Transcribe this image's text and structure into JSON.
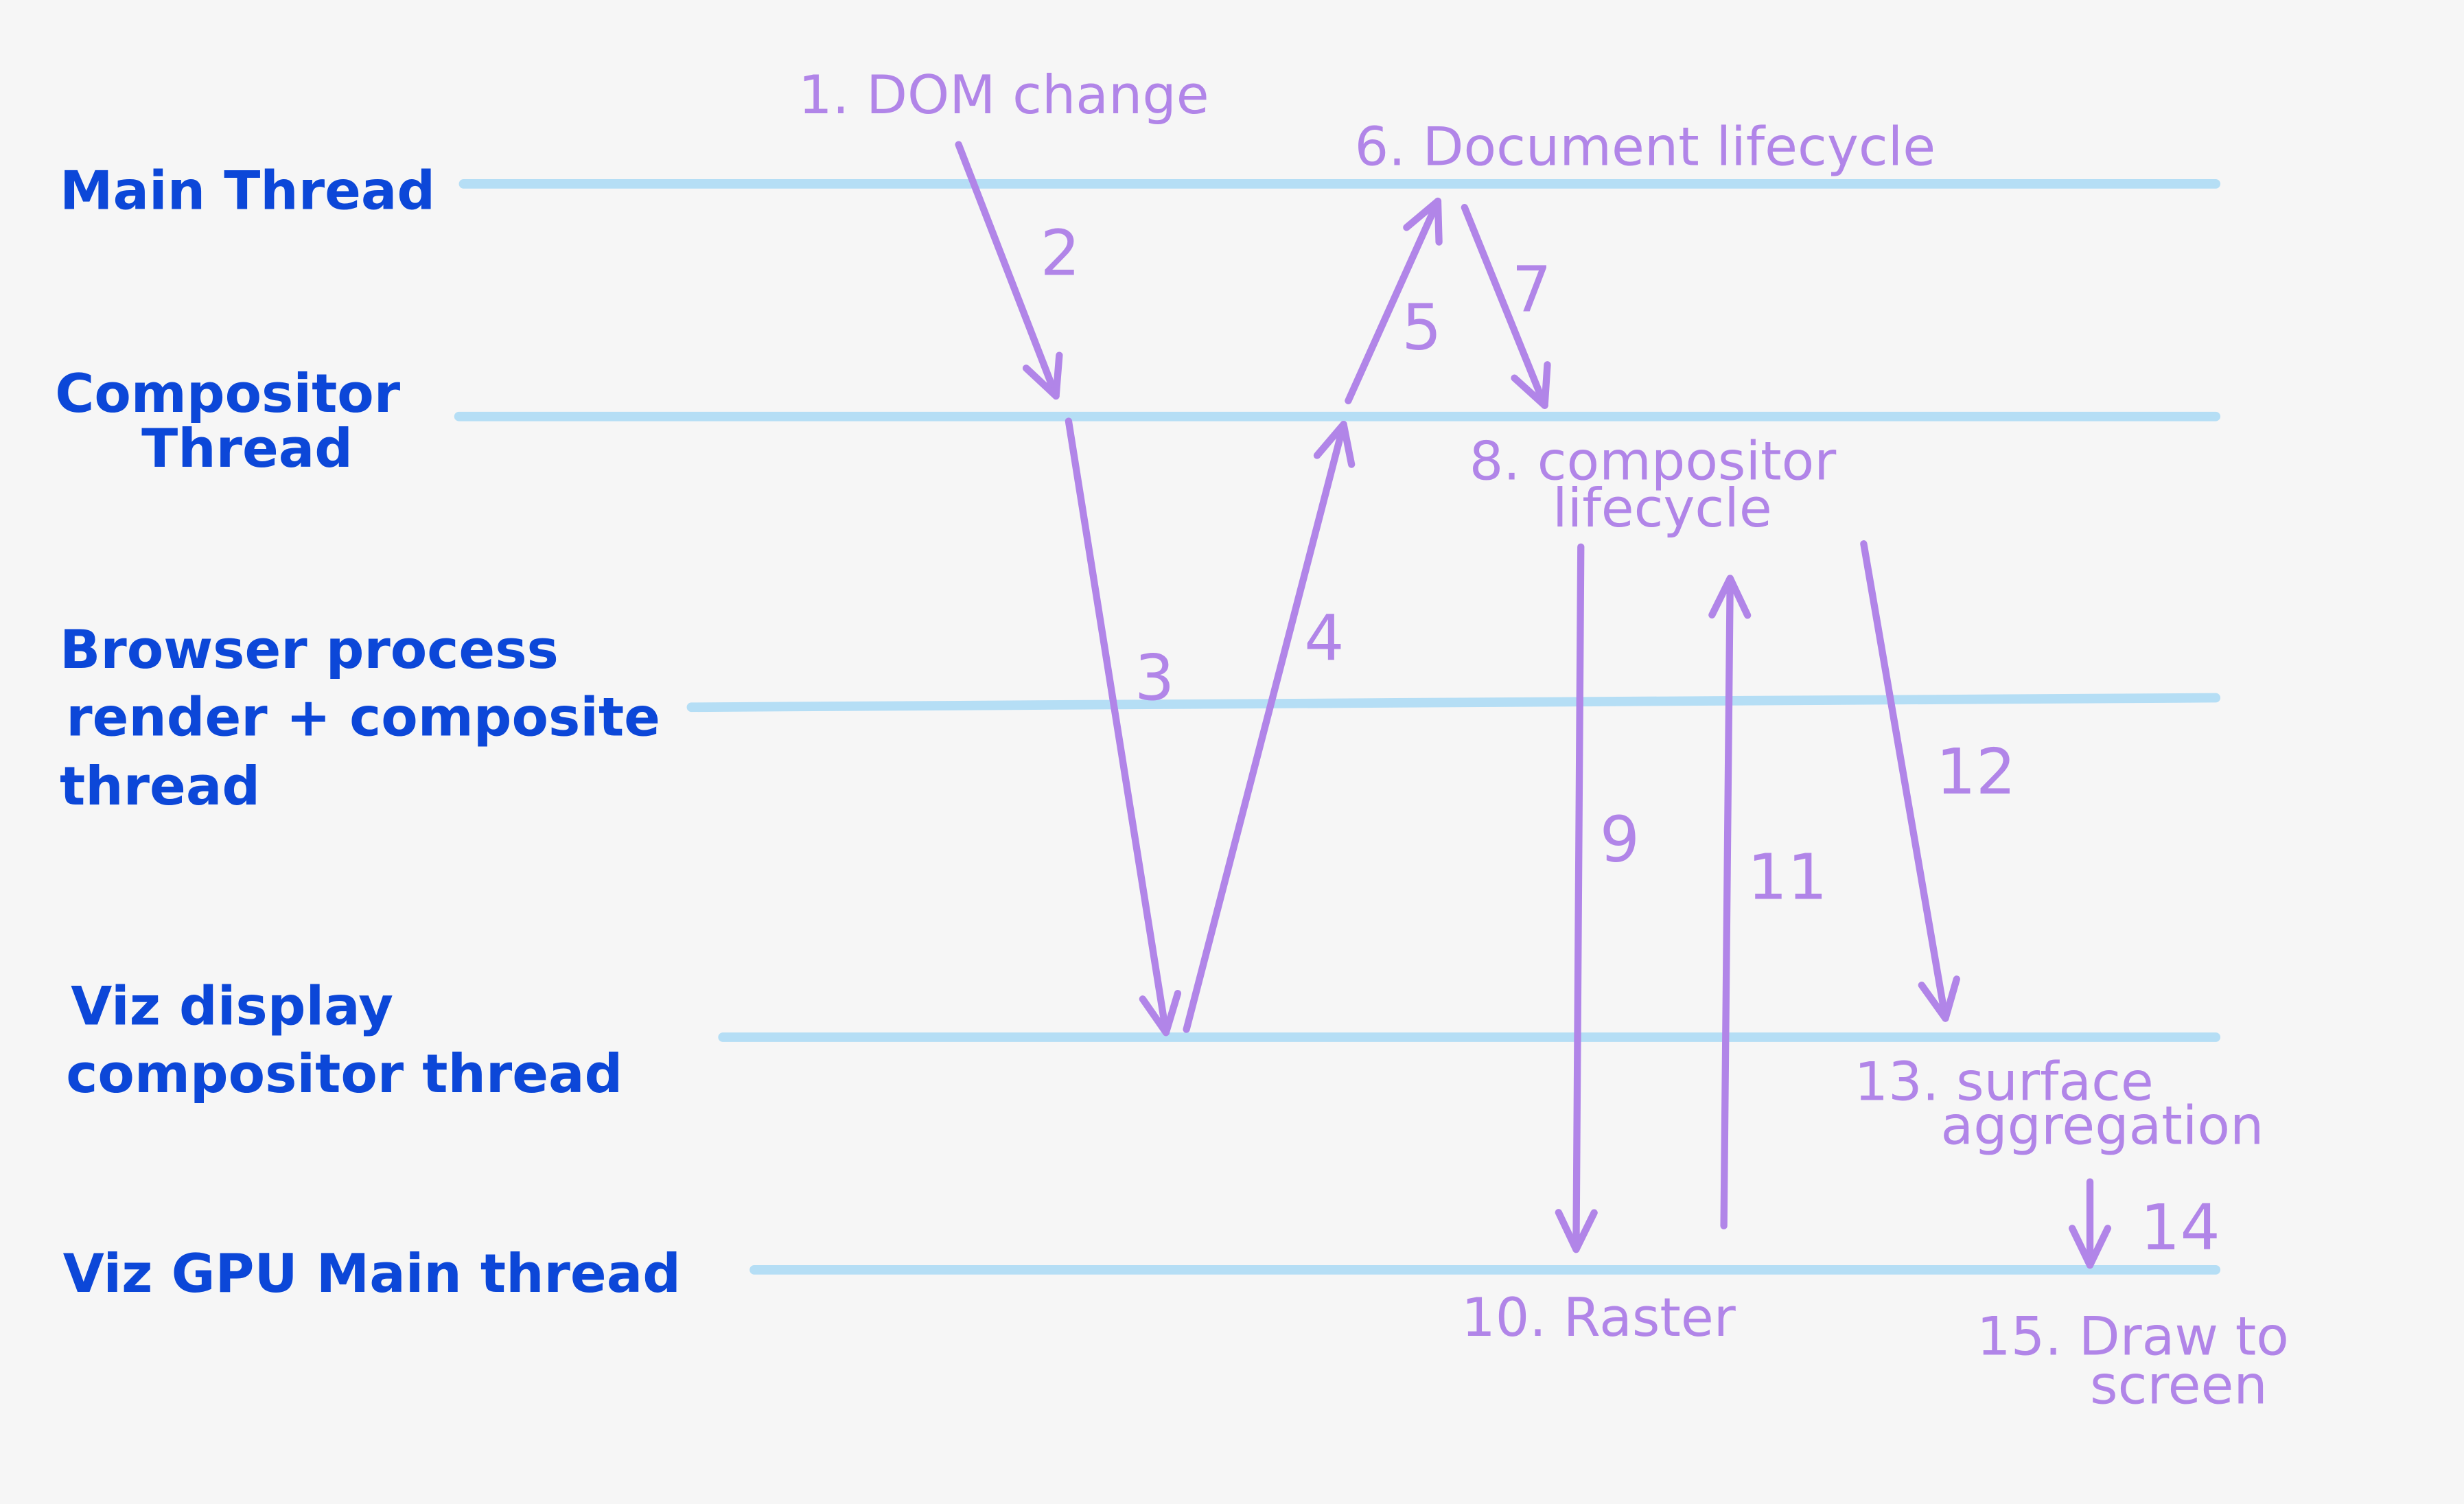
{
  "colors": {
    "background": "#f6f6f6",
    "lane_text": "#0c47d8",
    "lane_line": "#b5def5",
    "step": "#b185e8"
  },
  "lanes": [
    {
      "lines": [
        "Main Thread"
      ]
    },
    {
      "lines": [
        "Compositor",
        "Thread"
      ]
    },
    {
      "lines": [
        "Browser process",
        "render + composite",
        "thread"
      ]
    },
    {
      "lines": [
        "Viz display",
        "compositor thread"
      ]
    },
    {
      "lines": [
        "Viz GPU Main thread"
      ]
    }
  ],
  "steps": [
    {
      "lines": [
        "1. DOM change"
      ]
    },
    {
      "lines": [
        "6. Document lifecycle"
      ]
    },
    {
      "lines": [
        "8. compositor",
        "lifecycle"
      ]
    },
    {
      "lines": [
        "10. Raster"
      ]
    },
    {
      "lines": [
        "13. surface",
        "aggregation"
      ]
    },
    {
      "lines": [
        "15. Draw to",
        "screen"
      ]
    }
  ],
  "arrows": [
    {
      "label": "2",
      "from_lane": "Main Thread",
      "to_lane": "Compositor Thread"
    },
    {
      "label": "3",
      "from_lane": "Compositor Thread",
      "to_lane": "Viz display compositor thread"
    },
    {
      "label": "4",
      "from_lane": "Viz display compositor thread",
      "to_lane": "Compositor Thread"
    },
    {
      "label": "5",
      "from_lane": "Compositor Thread",
      "to_lane": "Main Thread"
    },
    {
      "label": "7",
      "from_lane": "Main Thread",
      "to_lane": "Compositor Thread"
    },
    {
      "label": "9",
      "from_lane": "Compositor Thread",
      "to_lane": "Viz GPU Main thread"
    },
    {
      "label": "11",
      "from_lane": "Viz GPU Main thread",
      "to_lane": "Compositor Thread"
    },
    {
      "label": "12",
      "from_lane": "Compositor Thread",
      "to_lane": "Viz display compositor thread"
    },
    {
      "label": "14",
      "from_lane": "Viz display compositor thread",
      "to_lane": "Viz GPU Main thread"
    }
  ]
}
